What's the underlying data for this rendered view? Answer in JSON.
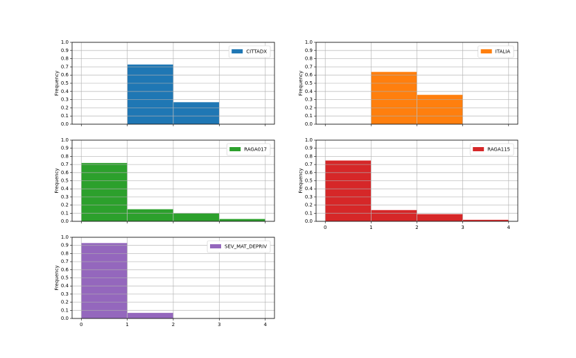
{
  "chart_data": [
    {
      "type": "histogram",
      "series": [
        {
          "name": "CITTADX",
          "color": "#1f77b4",
          "values": [
            0.73,
            0.27
          ]
        }
      ],
      "bins": [
        1,
        2,
        3
      ],
      "ylabel": "Frequency",
      "xlim": [
        -0.2,
        4.2
      ],
      "xticks": [
        0,
        1,
        2,
        3,
        4
      ],
      "xticklabels": false,
      "ylim": [
        0,
        1
      ],
      "yticks": [
        {
          "value": 0,
          "label": "0.0"
        },
        0.1,
        0.2,
        0.3,
        0.4,
        0.5,
        0.6,
        0.7,
        0.8,
        0.9,
        {
          "value": 1,
          "label": "1.0"
        }
      ],
      "grid": true,
      "legend": "upper right"
    },
    {
      "type": "histogram",
      "series": [
        {
          "name": "ITALIA",
          "color": "#ff7f0e",
          "values": [
            0.64,
            0.36
          ]
        }
      ],
      "bins": [
        1,
        2,
        3
      ],
      "ylabel": "Frequency",
      "xlim": [
        -0.2,
        4.2
      ],
      "xticks": [
        0,
        1,
        2,
        3,
        4
      ],
      "xticklabels": false,
      "ylim": [
        0,
        1
      ],
      "yticks": [
        {
          "value": 0,
          "label": "0.0"
        },
        0.1,
        0.2,
        0.3,
        0.4,
        0.5,
        0.6,
        0.7,
        0.8,
        0.9,
        {
          "value": 1,
          "label": "1.0"
        }
      ],
      "grid": true,
      "legend": "upper right"
    },
    {
      "type": "histogram",
      "series": [
        {
          "name": "RAGA017",
          "color": "#2ca02c",
          "values": [
            0.72,
            0.15,
            0.1,
            0.03
          ]
        }
      ],
      "bins": [
        0,
        1,
        2,
        3,
        4
      ],
      "ylabel": "Frequency",
      "xlim": [
        -0.2,
        4.2
      ],
      "xticks": [
        0,
        1,
        2,
        3,
        4
      ],
      "xticklabels": false,
      "ylim": [
        0,
        1
      ],
      "yticks": [
        {
          "value": 0,
          "label": "0.0"
        },
        0.1,
        0.2,
        0.3,
        0.4,
        0.5,
        0.6,
        0.7,
        0.8,
        0.9,
        {
          "value": 1,
          "label": "1.0"
        }
      ],
      "grid": true,
      "legend": "upper right"
    },
    {
      "type": "histogram",
      "series": [
        {
          "name": "RAGA115",
          "color": "#d62728",
          "values": [
            0.75,
            0.14,
            0.09,
            0.02
          ]
        }
      ],
      "bins": [
        0,
        1,
        2,
        3,
        4
      ],
      "ylabel": "Frequency",
      "xlim": [
        -0.2,
        4.2
      ],
      "xticks": [
        0,
        1,
        2,
        3,
        4
      ],
      "xticklabels": true,
      "ylim": [
        0,
        1
      ],
      "yticks": [
        {
          "value": 0,
          "label": "0.0"
        },
        0.1,
        0.2,
        0.3,
        0.4,
        0.5,
        0.6,
        0.7,
        0.8,
        0.9,
        {
          "value": 1,
          "label": "1.0"
        }
      ],
      "grid": true,
      "legend": "upper right"
    },
    {
      "type": "histogram",
      "series": [
        {
          "name": "SEV_MAT_DEPRIV",
          "color": "#9467bd",
          "values": [
            0.93,
            0.07
          ]
        }
      ],
      "bins": [
        0,
        1,
        2
      ],
      "ylabel": "Frequency",
      "xlim": [
        -0.2,
        4.2
      ],
      "xticks": [
        0,
        1,
        2,
        3,
        4
      ],
      "xticklabels": true,
      "ylim": [
        0,
        1
      ],
      "yticks": [
        {
          "value": 0,
          "label": "0.0"
        },
        0.1,
        0.2,
        0.3,
        0.4,
        0.5,
        0.6,
        0.7,
        0.8,
        0.9,
        {
          "value": 1,
          "label": "1.0"
        }
      ],
      "grid": true,
      "legend": "upper right"
    }
  ]
}
